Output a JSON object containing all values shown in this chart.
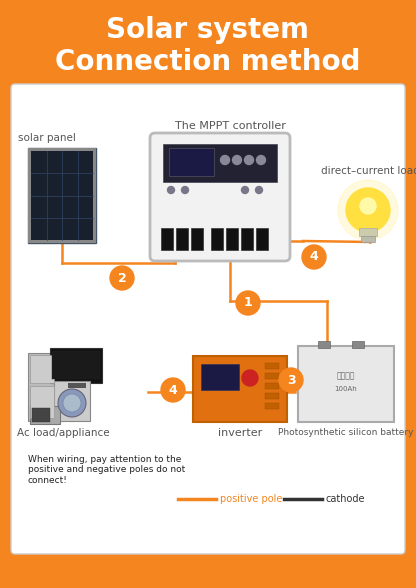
{
  "bg_color": "#F5851F",
  "title_line1": "Solar system",
  "title_line2": "Connection method",
  "title_color": "#FFFFFF",
  "title_fontsize": 20,
  "orange_circle_color": "#F5851F",
  "orange": "#F5851F",
  "black": "#333333",
  "labels": {
    "solar_panel": "solar panel",
    "mppt": "The MPPT controller",
    "dc_load": "direct–current load",
    "ac_load": "Ac load/appliance",
    "inverter": "inverter",
    "battery": "Photosynthetic silicon battery",
    "warning": "When wiring, pay attention to the\npositive and negative poles do not\nconnect!",
    "positive_pole": "positive pole",
    "cathode": "cathode"
  },
  "fig_w": 4.16,
  "fig_h": 5.88,
  "dpi": 100
}
